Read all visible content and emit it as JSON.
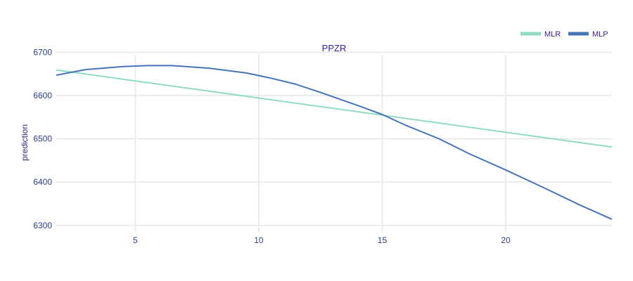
{
  "chart_data": {
    "type": "line",
    "title": "PPZR",
    "xlabel": "",
    "ylabel": "prediction",
    "xlim": [
      1.8,
      24.3
    ],
    "ylim": [
      6285,
      6720
    ],
    "x_ticks": [
      5,
      10,
      15,
      20
    ],
    "y_ticks": [
      6300,
      6400,
      6500,
      6600,
      6700
    ],
    "grid": true,
    "legend_position": "top-right",
    "series": [
      {
        "name": "MLR",
        "color": "#8fdcc2",
        "x": [
          1.8,
          24.3
        ],
        "values": [
          6659,
          6481
        ]
      },
      {
        "name": "MLP",
        "color": "#4575b8",
        "x": [
          1.8,
          3,
          4.5,
          5.5,
          6.5,
          8,
          9.5,
          10.5,
          11.5,
          12.5,
          14,
          15,
          16,
          17.3,
          18.5,
          20,
          21.5,
          23,
          24.3
        ],
        "values": [
          6647,
          6660,
          6667,
          6669,
          6669,
          6663,
          6652,
          6640,
          6626,
          6607,
          6577,
          6556,
          6530,
          6500,
          6466,
          6428,
          6388,
          6347,
          6314
        ]
      }
    ]
  }
}
